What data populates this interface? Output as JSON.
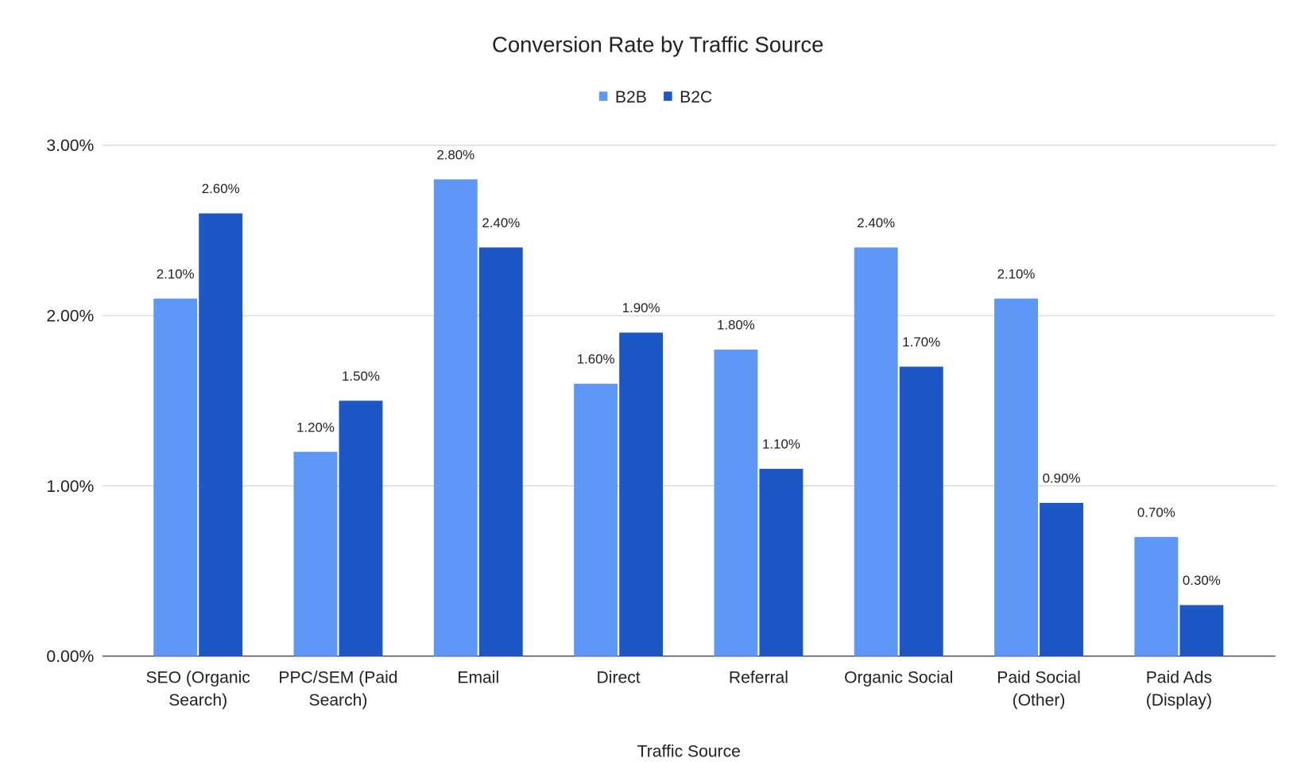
{
  "chart_data": {
    "type": "bar",
    "title": "Conversion Rate by Traffic Source",
    "xlabel": "Traffic Source",
    "ylabel": "",
    "ylim": [
      0,
      3
    ],
    "yticks": [
      "0.00%",
      "1.00%",
      "2.00%",
      "3.00%"
    ],
    "grid": true,
    "legend_position": "top",
    "categories": [
      [
        "SEO (Organic",
        "Search)"
      ],
      [
        "PPC/SEM (Paid",
        "Search)"
      ],
      [
        "Email"
      ],
      [
        "Direct"
      ],
      [
        "Referral"
      ],
      [
        "Organic Social"
      ],
      [
        "Paid Social",
        "(Other)"
      ],
      [
        "Paid Ads",
        "(Display)"
      ]
    ],
    "series": [
      {
        "name": "B2B",
        "color": "#5e97f6",
        "values": [
          2.1,
          1.2,
          2.8,
          1.6,
          1.8,
          2.4,
          2.1,
          0.7
        ],
        "labels": [
          "2.10%",
          "1.20%",
          "2.80%",
          "1.60%",
          "1.80%",
          "2.40%",
          "2.10%",
          "0.70%"
        ]
      },
      {
        "name": "B2C",
        "color": "#1c57c5",
        "values": [
          2.6,
          1.5,
          2.4,
          1.9,
          1.1,
          1.7,
          0.9,
          0.3
        ],
        "labels": [
          "2.60%",
          "1.50%",
          "2.40%",
          "1.90%",
          "1.10%",
          "1.70%",
          "0.90%",
          "0.30%"
        ]
      }
    ]
  }
}
